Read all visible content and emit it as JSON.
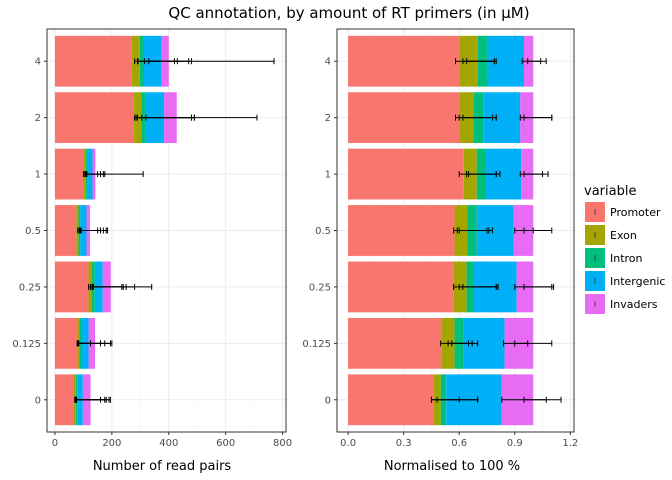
{
  "title": "QC annotation, by amount of RT primers (in µM)",
  "legend": {
    "title": "variable",
    "entries": [
      {
        "name": "Promoter",
        "color": "#F8766D"
      },
      {
        "name": "Exon",
        "color": "#A3A500"
      },
      {
        "name": "Intron",
        "color": "#00BF7D"
      },
      {
        "name": "Intergenic",
        "color": "#00B0F6"
      },
      {
        "name": "Invaders",
        "color": "#E76BF3"
      }
    ]
  },
  "chart_data": [
    {
      "type": "bar",
      "orientation": "horizontal",
      "stacked": true,
      "categories": [
        "0",
        "0.125",
        "0.25",
        "0.5",
        "1",
        "2",
        "4"
      ],
      "series": [
        {
          "name": "Promoter",
          "values": [
            65,
            78,
            118,
            75,
            100,
            278,
            270
          ]
        },
        {
          "name": "Exon",
          "values": [
            8,
            10,
            12,
            8,
            8,
            25,
            28
          ]
        },
        {
          "name": "Intron",
          "values": [
            5,
            7,
            10,
            6,
            6,
            15,
            15
          ]
        },
        {
          "name": "Intergenic",
          "values": [
            20,
            23,
            28,
            22,
            18,
            66,
            62
          ]
        },
        {
          "name": "Invaders",
          "values": [
            27,
            23,
            28,
            12,
            10,
            44,
            25
          ]
        }
      ],
      "errorbars": [
        {
          "series": "Promoter",
          "values": [
            [
              70,
              160
            ],
            [
              78,
              125
            ],
            [
              118,
              340
            ],
            [
              80,
              160
            ],
            [
              100,
              310
            ],
            [
              280,
              710
            ],
            [
              280,
              770
            ]
          ]
        },
        {
          "series": "Exon",
          "values": [
            [
              70,
              180
            ],
            [
              80,
              160
            ],
            [
              125,
              280
            ],
            [
              85,
              150
            ],
            [
              105,
              150
            ],
            [
              285,
              490
            ],
            [
              290,
              480
            ]
          ]
        },
        {
          "series": "Intron",
          "values": [
            [
              72,
              175
            ],
            [
              80,
              175
            ],
            [
              130,
              240
            ],
            [
              88,
              170
            ],
            [
              108,
              160
            ],
            [
              290,
              480
            ],
            [
              292,
              420
            ]
          ]
        },
        {
          "series": "Intergenic",
          "values": [
            [
              74,
              190
            ],
            [
              82,
              195
            ],
            [
              132,
              235
            ],
            [
              90,
              180
            ],
            [
              110,
              170
            ],
            [
              305,
              480
            ],
            [
              315,
              430
            ]
          ]
        },
        {
          "series": "Invaders",
          "values": [
            [
              76,
              195
            ],
            [
              84,
              200
            ],
            [
              135,
              250
            ],
            [
              92,
              185
            ],
            [
              112,
              175
            ],
            [
              320,
              490
            ],
            [
              330,
              470
            ]
          ]
        }
      ],
      "xlabel": "Number of read pairs",
      "ylabel": "",
      "xlim": [
        -28,
        812
      ],
      "xticks": [
        0,
        200,
        400,
        600,
        800
      ],
      "grid": true
    },
    {
      "type": "bar",
      "orientation": "horizontal",
      "stacked": true,
      "categories": [
        "0",
        "0.125",
        "0.25",
        "0.5",
        "1",
        "2",
        "4"
      ],
      "series": [
        {
          "name": "Promoter",
          "values": [
            0.46,
            0.505,
            0.57,
            0.575,
            0.625,
            0.6,
            0.6
          ]
        },
        {
          "name": "Exon",
          "values": [
            0.04,
            0.07,
            0.07,
            0.07,
            0.07,
            0.08,
            0.1
          ]
        },
        {
          "name": "Intron",
          "values": [
            0.03,
            0.05,
            0.04,
            0.05,
            0.05,
            0.05,
            0.05
          ]
        },
        {
          "name": "Intergenic",
          "values": [
            0.3,
            0.22,
            0.23,
            0.2,
            0.19,
            0.2,
            0.2
          ]
        },
        {
          "name": "Invaders",
          "values": [
            0.17,
            0.155,
            0.09,
            0.105,
            0.065,
            0.07,
            0.05
          ]
        }
      ],
      "errorbars": [
        {
          "series": "Promoter",
          "values": [
            [
              0.45,
              0.6
            ],
            [
              0.5,
              0.65
            ],
            [
              0.57,
              0.8
            ],
            [
              0.57,
              0.75
            ],
            [
              0.6,
              0.8
            ],
            [
              0.58,
              0.78
            ],
            [
              0.58,
              0.79
            ]
          ]
        },
        {
          "series": "Exon",
          "values": [
            [
              0.45,
              0.7
            ],
            [
              0.54,
              0.67
            ],
            [
              0.6,
              0.81
            ],
            [
              0.59,
              0.76
            ],
            [
              0.64,
              0.8
            ],
            [
              0.6,
              0.8
            ],
            [
              0.62,
              0.8
            ]
          ]
        },
        {
          "series": "Intron",
          "values": [
            [
              0.48,
              0.7
            ],
            [
              0.56,
              0.7
            ],
            [
              0.62,
              0.8
            ],
            [
              0.6,
              0.78
            ],
            [
              0.65,
              0.82
            ],
            [
              0.62,
              0.8
            ],
            [
              0.64,
              0.79
            ]
          ]
        },
        {
          "series": "Intergenic",
          "values": [
            [
              0.83,
              1.07
            ],
            [
              0.84,
              0.97
            ],
            [
              0.9,
              1.1
            ],
            [
              0.9,
              1.0
            ],
            [
              0.93,
              1.05
            ],
            [
              0.93,
              1.1
            ],
            [
              0.94,
              1.04
            ]
          ]
        },
        {
          "series": "Invaders",
          "values": [
            [
              0.95,
              1.15
            ],
            [
              0.9,
              1.1
            ],
            [
              0.95,
              1.11
            ],
            [
              0.95,
              1.1
            ],
            [
              0.95,
              1.08
            ],
            [
              0.95,
              1.1
            ],
            [
              0.97,
              1.07
            ]
          ]
        }
      ],
      "xlabel": "Normalised to 100 %",
      "ylabel": "",
      "xlim": [
        -0.06,
        1.22
      ],
      "xticks": [
        0.0,
        0.3,
        0.6,
        0.9,
        1.2
      ],
      "xtick_labels": [
        "0.0",
        "0.3",
        "0.6",
        "0.9",
        "1.2"
      ],
      "grid": true
    }
  ]
}
